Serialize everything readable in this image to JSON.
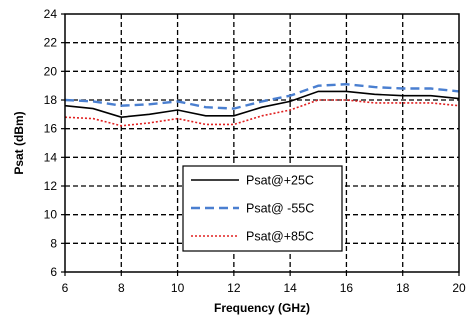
{
  "chart_data": {
    "type": "line",
    "xlabel": "Frequency (GHz)",
    "ylabel": "Psat (dBm)",
    "xlim": [
      6,
      20
    ],
    "ylim": [
      6,
      24
    ],
    "xticks": [
      "6",
      "8",
      "10",
      "12",
      "14",
      "16",
      "18",
      "20"
    ],
    "yticks": [
      "6",
      "8",
      "10",
      "12",
      "14",
      "16",
      "18",
      "20",
      "22",
      "24"
    ],
    "grid": true,
    "grid_style": "dashed",
    "legend_position": "center-bottom",
    "series": [
      {
        "name": "Psat@+25C",
        "color": "#000000",
        "style": "solid",
        "x": [
          6,
          7,
          8,
          9,
          10,
          11,
          12,
          13,
          14,
          15,
          16,
          17,
          18,
          19,
          20
        ],
        "y": [
          17.6,
          17.4,
          16.8,
          17.0,
          17.3,
          16.9,
          16.9,
          17.5,
          17.9,
          18.6,
          18.6,
          18.4,
          18.3,
          18.3,
          18.1
        ]
      },
      {
        "name": "Psat@ -55C",
        "color": "#4a7fd0",
        "style": "dashed",
        "x": [
          6,
          7,
          8,
          9,
          10,
          11,
          12,
          13,
          14,
          15,
          16,
          17,
          18,
          19,
          20
        ],
        "y": [
          18.0,
          17.9,
          17.6,
          17.7,
          17.9,
          17.5,
          17.4,
          17.9,
          18.3,
          19.0,
          19.1,
          18.9,
          18.8,
          18.8,
          18.6
        ]
      },
      {
        "name": "Psat@+85C",
        "color": "#e02020",
        "style": "dotted",
        "x": [
          6,
          7,
          8,
          9,
          10,
          11,
          12,
          13,
          14,
          15,
          16,
          17,
          18,
          19,
          20
        ],
        "y": [
          16.8,
          16.7,
          16.2,
          16.4,
          16.7,
          16.3,
          16.3,
          16.9,
          17.3,
          18.0,
          18.0,
          17.8,
          17.8,
          17.8,
          17.6
        ]
      }
    ]
  }
}
